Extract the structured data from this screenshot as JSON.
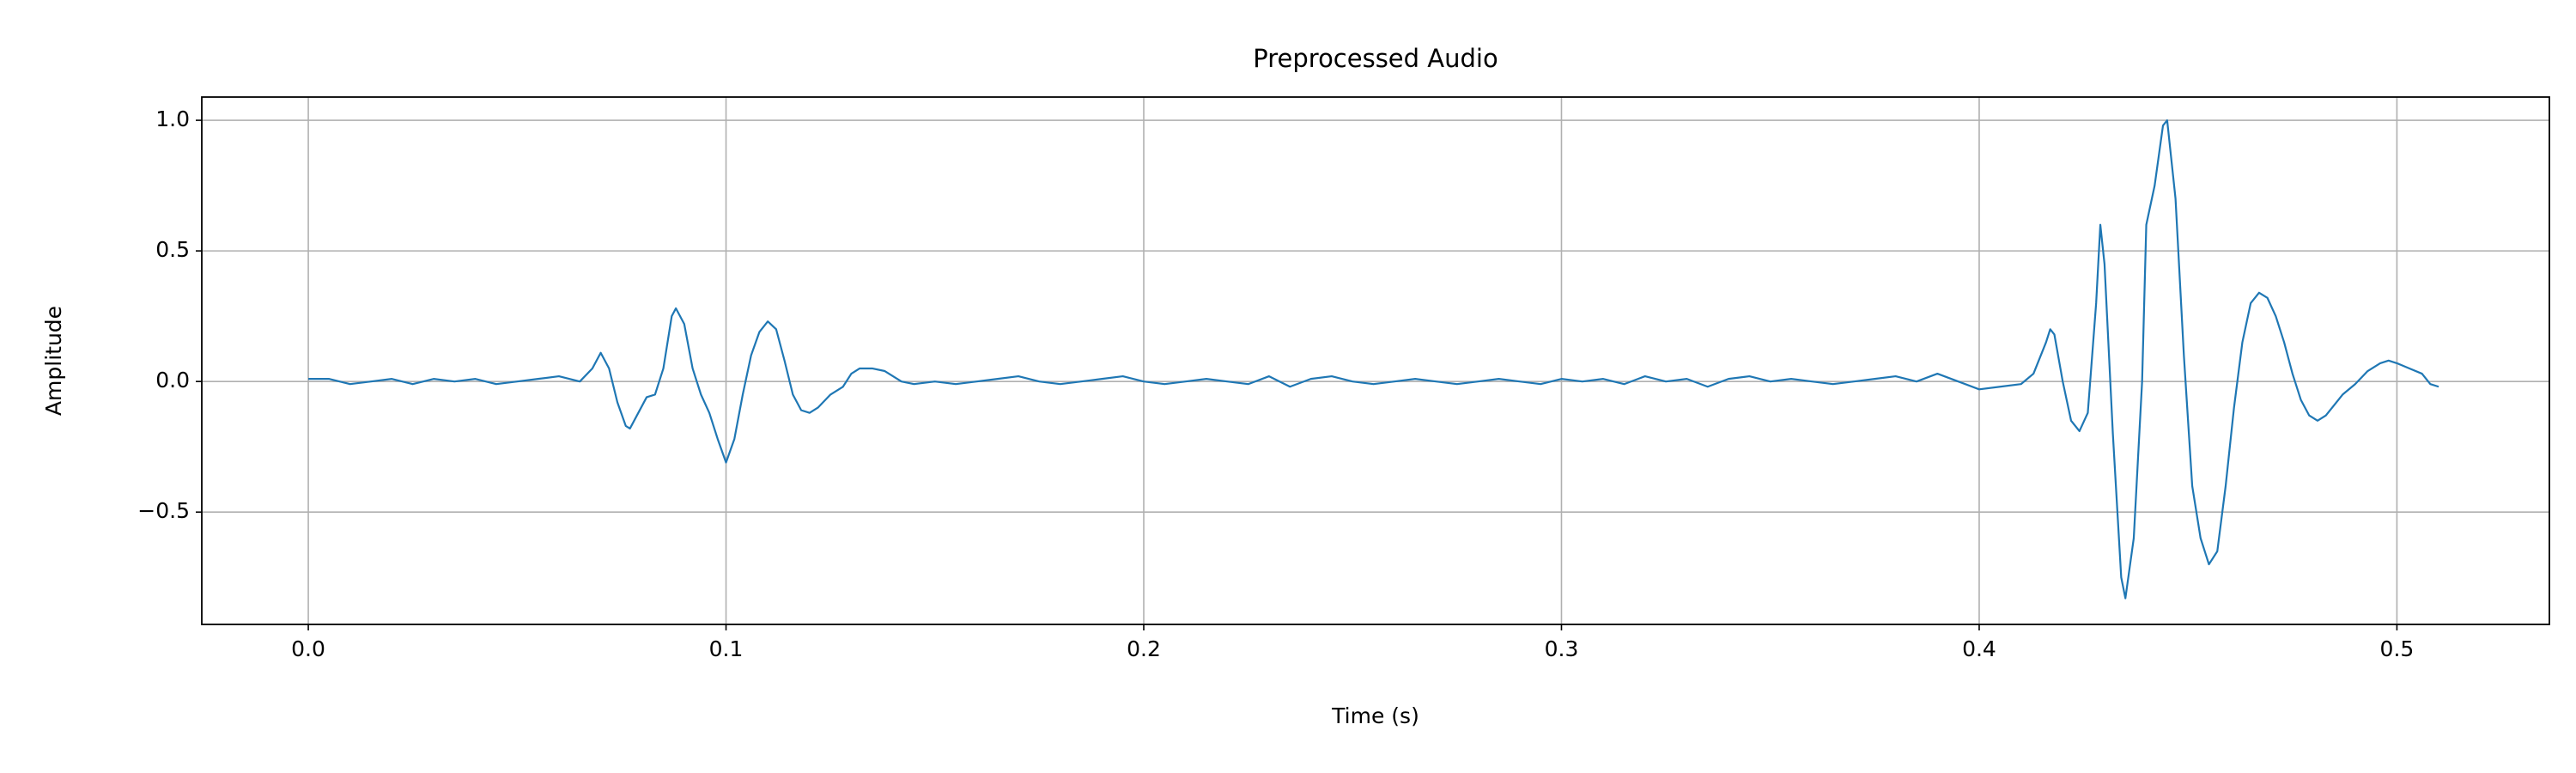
{
  "chart_data": {
    "type": "line",
    "title": "Preprocessed Audio",
    "x_label": "Time (s)",
    "y_label": "Amplitude",
    "xlim": [
      -0.0255,
      0.5365
    ],
    "ylim": [
      -0.93,
      1.089
    ],
    "grid": true,
    "xticks": [
      {
        "value": 0,
        "label": "0.0"
      },
      {
        "value": 0.1,
        "label": "0.1"
      },
      {
        "value": 0.2,
        "label": "0.2"
      },
      {
        "value": 0.3,
        "label": "0.3"
      },
      {
        "value": 0.4,
        "label": "0.4"
      },
      {
        "value": 0.5,
        "label": "0.5"
      }
    ],
    "yticks": [
      {
        "value": -0.5,
        "label": "−0.5"
      },
      {
        "value": 0,
        "label": "0.0"
      },
      {
        "value": 0.5,
        "label": "0.5"
      },
      {
        "value": 1,
        "label": "1.0"
      }
    ],
    "x": [
      0,
      0.005,
      0.01,
      0.015,
      0.02,
      0.025,
      0.03,
      0.035,
      0.04,
      0.045,
      0.05,
      0.055,
      0.06,
      0.065,
      0.068,
      0.07,
      0.072,
      0.074,
      0.076,
      0.077,
      0.079,
      0.081,
      0.083,
      0.085,
      0.087,
      0.088,
      0.09,
      0.092,
      0.094,
      0.096,
      0.098,
      0.1,
      0.102,
      0.104,
      0.106,
      0.108,
      0.11,
      0.112,
      0.114,
      0.116,
      0.118,
      0.12,
      0.122,
      0.125,
      0.128,
      0.13,
      0.132,
      0.135,
      0.138,
      0.142,
      0.145,
      0.15,
      0.155,
      0.16,
      0.165,
      0.17,
      0.175,
      0.18,
      0.185,
      0.19,
      0.195,
      0.2,
      0.205,
      0.21,
      0.215,
      0.22,
      0.225,
      0.23,
      0.235,
      0.24,
      0.245,
      0.25,
      0.255,
      0.26,
      0.265,
      0.27,
      0.275,
      0.28,
      0.285,
      0.29,
      0.295,
      0.3,
      0.305,
      0.31,
      0.315,
      0.32,
      0.325,
      0.33,
      0.335,
      0.34,
      0.345,
      0.35,
      0.355,
      0.36,
      0.365,
      0.37,
      0.375,
      0.38,
      0.385,
      0.39,
      0.395,
      0.4,
      0.405,
      0.41,
      0.413,
      0.416,
      0.417,
      0.418,
      0.42,
      0.422,
      0.424,
      0.426,
      0.428,
      0.429,
      0.43,
      0.432,
      0.434,
      0.435,
      0.437,
      0.439,
      0.44,
      0.442,
      0.444,
      0.445,
      0.447,
      0.449,
      0.451,
      0.453,
      0.455,
      0.457,
      0.459,
      0.461,
      0.463,
      0.465,
      0.467,
      0.469,
      0.471,
      0.473,
      0.475,
      0.477,
      0.479,
      0.481,
      0.483,
      0.485,
      0.487,
      0.49,
      0.493,
      0.496,
      0.498,
      0.5,
      0.503,
      0.506,
      0.508,
      0.51
    ],
    "series": [
      {
        "name": "Amplitude",
        "color": "#1f77b4",
        "values": [
          0.01,
          0.01,
          -0.01,
          0.0,
          0.01,
          -0.01,
          0.01,
          0.0,
          0.01,
          -0.01,
          0.0,
          0.01,
          0.02,
          0.0,
          0.05,
          0.11,
          0.05,
          -0.08,
          -0.17,
          -0.18,
          -0.12,
          -0.06,
          -0.05,
          0.05,
          0.25,
          0.28,
          0.22,
          0.05,
          -0.05,
          -0.12,
          -0.22,
          -0.31,
          -0.22,
          -0.05,
          0.1,
          0.19,
          0.23,
          0.2,
          0.08,
          -0.05,
          -0.11,
          -0.12,
          -0.1,
          -0.05,
          -0.02,
          0.03,
          0.05,
          0.05,
          0.04,
          0.0,
          -0.01,
          0.0,
          -0.01,
          0.0,
          0.01,
          0.02,
          0.0,
          -0.01,
          0.0,
          0.01,
          0.02,
          0.0,
          -0.01,
          0.0,
          0.01,
          0.0,
          -0.01,
          0.02,
          -0.02,
          0.01,
          0.02,
          0.0,
          -0.01,
          0.0,
          0.01,
          0.0,
          -0.01,
          0.0,
          0.01,
          0.0,
          -0.01,
          0.01,
          0.0,
          0.01,
          -0.01,
          0.02,
          0.0,
          0.01,
          -0.02,
          0.01,
          0.02,
          0.0,
          0.01,
          0.0,
          -0.01,
          0.0,
          0.01,
          0.02,
          0.0,
          0.03,
          0.0,
          -0.03,
          -0.02,
          -0.01,
          0.03,
          0.15,
          0.2,
          0.18,
          0.0,
          -0.15,
          -0.19,
          -0.12,
          0.3,
          0.6,
          0.45,
          -0.2,
          -0.75,
          -0.83,
          -0.6,
          0.0,
          0.6,
          0.75,
          0.98,
          1.0,
          0.7,
          0.1,
          -0.4,
          -0.6,
          -0.7,
          -0.65,
          -0.4,
          -0.1,
          0.15,
          0.3,
          0.34,
          0.32,
          0.25,
          0.15,
          0.03,
          -0.07,
          -0.13,
          -0.15,
          -0.13,
          -0.09,
          -0.05,
          -0.01,
          0.04,
          0.07,
          0.08,
          0.07,
          0.05,
          0.03,
          -0.01,
          -0.02
        ]
      }
    ]
  }
}
